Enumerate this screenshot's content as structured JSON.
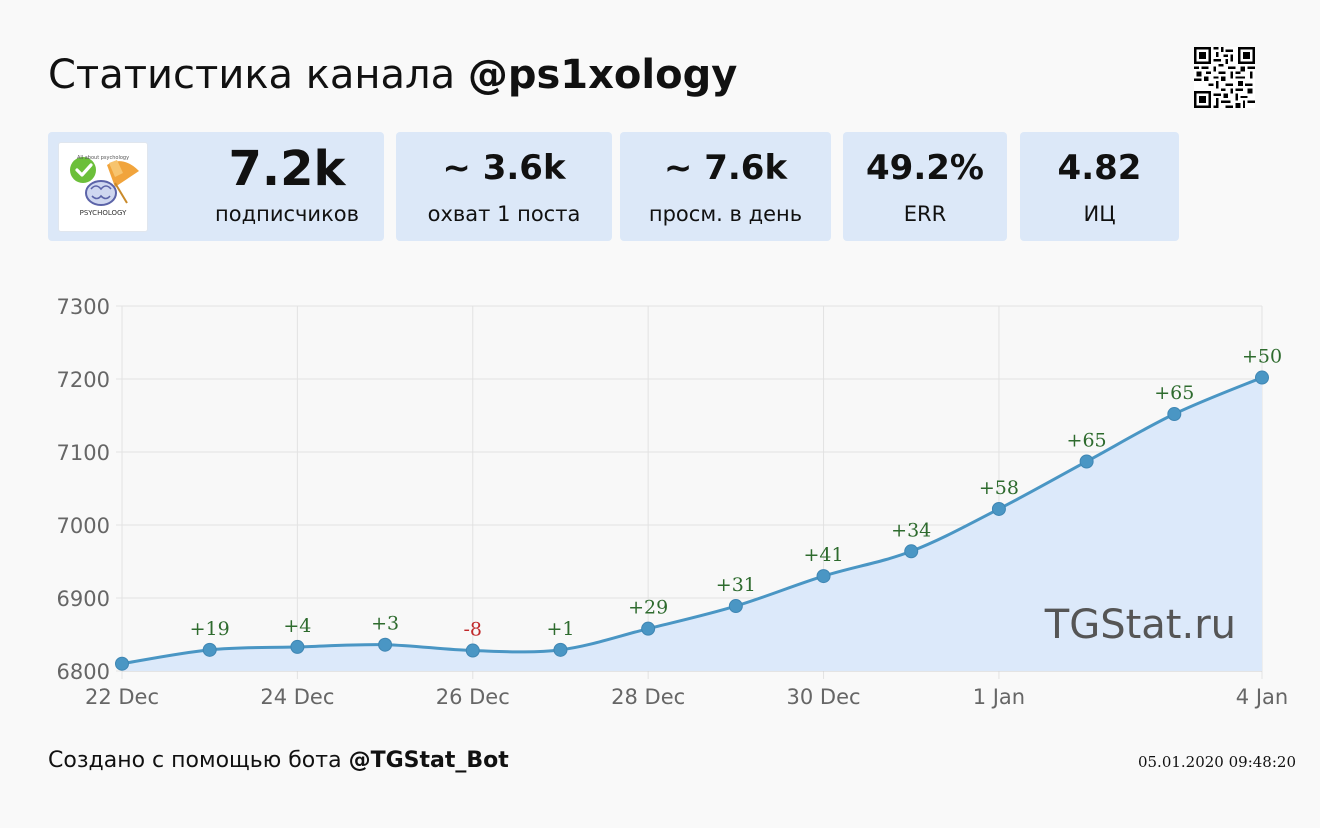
{
  "header": {
    "title_prefix": "Статистика канала",
    "channel": "@ps1xology"
  },
  "logo": {
    "top_text": "All about psychology",
    "name": "PSYCHOLOGY",
    "icon": "brain-umbrella-check-icon"
  },
  "stats": [
    {
      "value": "7.2k",
      "label": "подписчиков"
    },
    {
      "value": "~ 3.6k",
      "label": "охват 1 поста"
    },
    {
      "value": "~ 7.6k",
      "label": "просм. в день"
    },
    {
      "value": "49.2%",
      "label": "ERR"
    },
    {
      "value": "4.82",
      "label": "ИЦ"
    }
  ],
  "chart_data": {
    "type": "area",
    "x": [
      "22 Dec",
      "23 Dec",
      "24 Dec",
      "25 Dec",
      "26 Dec",
      "27 Dec",
      "28 Dec",
      "29 Dec",
      "30 Dec",
      "31 Dec",
      "1 Jan",
      "2 Jan",
      "3 Jan",
      "4 Jan"
    ],
    "values": [
      6810,
      6829,
      6833,
      6836,
      6828,
      6829,
      6858,
      6889,
      6930,
      6964,
      7022,
      7087,
      7152,
      7202
    ],
    "data_labels": [
      "",
      "+19",
      "+4",
      "+3",
      "-8",
      "+1",
      "+29",
      "+31",
      "+41",
      "+34",
      "+58",
      "+65",
      "+65",
      "+50"
    ],
    "x_tick_labels": [
      "22 Dec",
      "24 Dec",
      "26 Dec",
      "28 Dec",
      "30 Dec",
      "1 Jan",
      "4 Jan"
    ],
    "x_tick_index": [
      0,
      2,
      4,
      6,
      8,
      10,
      13
    ],
    "y_ticks": [
      6800,
      6900,
      7000,
      7100,
      7200,
      7300
    ],
    "ylim": [
      6800,
      7300
    ],
    "grid": true,
    "line_color": "#4a96c4",
    "fill_color": "#dce9fa",
    "label_positive_color": "#2e6b2e",
    "label_negative_color": "#c0282a"
  },
  "watermark": "TGStat.ru",
  "footer": {
    "prefix": "Создано с помощью бота",
    "bot": "@TGStat_Bot",
    "timestamp": "05.01.2020 09:48:20"
  }
}
